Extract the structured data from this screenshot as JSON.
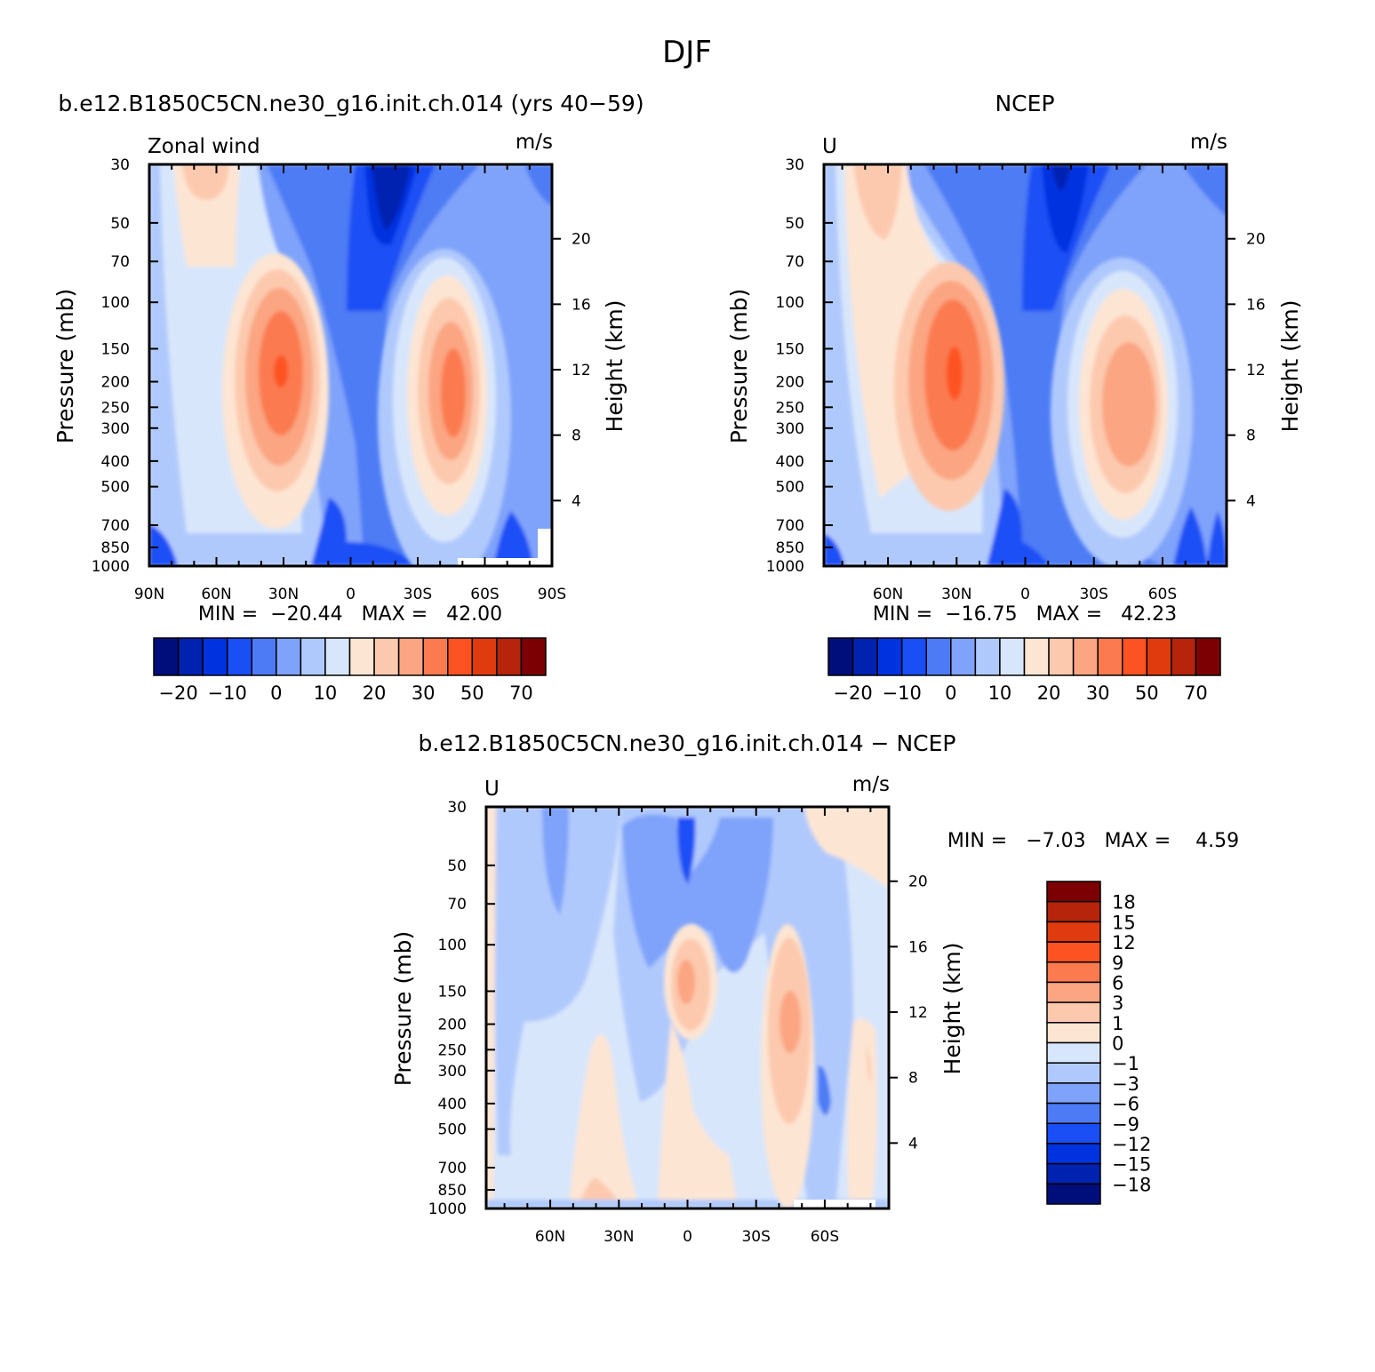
{
  "page_title": "DJF",
  "chart_data": [
    {
      "type": "heatmap",
      "id": "model",
      "title": "b.e12.B1850C5CN.ne30_g16.init.ch.014 (yrs 40-59)",
      "left_label": "Zonal wind",
      "units": "m/s",
      "ylabel": "Pressure (mb)",
      "y2label": "Height (km)",
      "y_ticks": [
        "30",
        "50",
        "70",
        "100",
        "150",
        "200",
        "250",
        "300",
        "400",
        "500",
        "700",
        "850",
        "1000"
      ],
      "y2_ticks": [
        "20",
        "16",
        "12",
        "8",
        "4"
      ],
      "x_ticks": [
        "90N",
        "60N",
        "30N",
        "0",
        "30S",
        "60S",
        "90S"
      ],
      "stats": "MIN =  -20.44   MAX =   42.00",
      "colorbar": {
        "colors": [
          "#000e7c",
          "#0022b0",
          "#0033e0",
          "#1a4ff5",
          "#4d7bf5",
          "#7fa3fa",
          "#b0c9fc",
          "#d8e6fb",
          "#fde5d3",
          "#fcc9ae",
          "#fba582",
          "#fb7a50",
          "#fd5221",
          "#e03b0e",
          "#b5240b",
          "#7c0003"
        ],
        "labels": [
          "-20",
          "-10",
          "0",
          "10",
          "20",
          "30",
          "50",
          "70"
        ]
      },
      "jets": [
        {
          "lat": 30,
          "p": 200,
          "value": 42.0
        },
        {
          "lat": -45,
          "p": 220,
          "value": 30.0
        }
      ]
    },
    {
      "type": "heatmap",
      "id": "ncep",
      "title": "NCEP",
      "left_label": "U",
      "units": "m/s",
      "ylabel": "Pressure (mb)",
      "y2label": "Height (km)",
      "y_ticks": [
        "30",
        "50",
        "70",
        "100",
        "150",
        "200",
        "250",
        "300",
        "400",
        "500",
        "700",
        "850",
        "1000"
      ],
      "y2_ticks": [
        "20",
        "16",
        "12",
        "8",
        "4"
      ],
      "x_ticks": [
        "60N",
        "30N",
        "0",
        "30S",
        "60S"
      ],
      "stats": "MIN =  -16.75   MAX =   42.23",
      "colorbar": {
        "colors": [
          "#000e7c",
          "#0022b0",
          "#0033e0",
          "#1a4ff5",
          "#4d7bf5",
          "#7fa3fa",
          "#b0c9fc",
          "#d8e6fb",
          "#fde5d3",
          "#fcc9ae",
          "#fba582",
          "#fb7a50",
          "#fd5221",
          "#e03b0e",
          "#b5240b",
          "#7c0003"
        ],
        "labels": [
          "-20",
          "-10",
          "0",
          "10",
          "20",
          "30",
          "50",
          "70"
        ]
      },
      "jets": [
        {
          "lat": 30,
          "p": 200,
          "value": 42.23
        },
        {
          "lat": -45,
          "p": 220,
          "value": 26.0
        }
      ]
    },
    {
      "type": "heatmap",
      "id": "diff",
      "title": "b.e12.B1850C5CN.ne30_g16.init.ch.014 - NCEP",
      "left_label": "U",
      "units": "m/s",
      "ylabel": "Pressure (mb)",
      "y2label": "Height (km)",
      "y_ticks": [
        "30",
        "50",
        "70",
        "100",
        "150",
        "200",
        "250",
        "300",
        "400",
        "500",
        "700",
        "850",
        "1000"
      ],
      "y2_ticks": [
        "20",
        "16",
        "12",
        "8",
        "4"
      ],
      "x_ticks": [
        "60N",
        "30N",
        "0",
        "30S",
        "60S"
      ],
      "stats": "MIN =   -7.03   MAX =    4.59",
      "colorbar": {
        "colors": [
          "#7c0003",
          "#b5240b",
          "#e03b0e",
          "#fd5221",
          "#fb7a50",
          "#fba582",
          "#fcc9ae",
          "#fde5d3",
          "#d8e6fb",
          "#b0c9fc",
          "#7fa3fa",
          "#4d7bf5",
          "#1a4ff5",
          "#0033e0",
          "#0022b0",
          "#000e7c"
        ],
        "labels": [
          "18",
          "15",
          "12",
          "9",
          "6",
          "3",
          "1",
          "0",
          "-1",
          "-3",
          "-6",
          "-9",
          "-12",
          "-15",
          "-18"
        ]
      }
    }
  ]
}
